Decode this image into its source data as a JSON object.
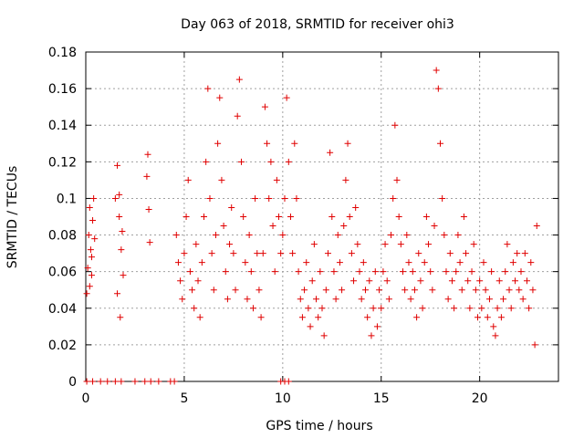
{
  "chart_data": {
    "type": "scatter",
    "title": "Day 063 of 2018, SRMTID for receiver ohi3",
    "xlabel": "GPS time / hours",
    "ylabel": "SRMTID / TECUs",
    "xlim": [
      0,
      24
    ],
    "ylim": [
      0,
      0.18
    ],
    "x_ticks": [
      "0",
      "5",
      "10",
      "15",
      "20"
    ],
    "y_ticks": [
      "0",
      "0.02",
      "0.04",
      "0.06",
      "0.08",
      "0.1",
      "0.12",
      "0.14",
      "0.16",
      "0.18"
    ],
    "grid": true,
    "marker": "plus",
    "series": [
      {
        "name": "SRMTID",
        "color": "#e00000",
        "points": [
          [
            0.05,
            0.048
          ],
          [
            0.1,
            0.062
          ],
          [
            0.15,
            0.08
          ],
          [
            0.2,
            0.095
          ],
          [
            0.25,
            0.072
          ],
          [
            0.3,
            0.058
          ],
          [
            0.35,
            0.088
          ],
          [
            0.4,
            0.1
          ],
          [
            0.45,
            0.078
          ],
          [
            0.2,
            0.052
          ],
          [
            0.3,
            0.068
          ],
          [
            1.5,
            0.1
          ],
          [
            1.6,
            0.118
          ],
          [
            1.7,
            0.09
          ],
          [
            1.8,
            0.072
          ],
          [
            1.9,
            0.058
          ],
          [
            1.6,
            0.048
          ],
          [
            1.75,
            0.035
          ],
          [
            1.85,
            0.082
          ],
          [
            1.7,
            0.102
          ],
          [
            3.1,
            0.112
          ],
          [
            3.15,
            0.124
          ],
          [
            3.2,
            0.094
          ],
          [
            3.25,
            0.076
          ],
          [
            4.6,
            0.08
          ],
          [
            4.7,
            0.065
          ],
          [
            4.8,
            0.055
          ],
          [
            4.9,
            0.045
          ],
          [
            5.0,
            0.07
          ],
          [
            5.1,
            0.09
          ],
          [
            5.2,
            0.11
          ],
          [
            5.3,
            0.06
          ],
          [
            5.4,
            0.05
          ],
          [
            5.5,
            0.04
          ],
          [
            5.6,
            0.075
          ],
          [
            5.7,
            0.055
          ],
          [
            5.8,
            0.035
          ],
          [
            5.9,
            0.065
          ],
          [
            6.0,
            0.09
          ],
          [
            6.1,
            0.12
          ],
          [
            6.2,
            0.16
          ],
          [
            6.3,
            0.1
          ],
          [
            6.4,
            0.07
          ],
          [
            6.5,
            0.05
          ],
          [
            6.6,
            0.08
          ],
          [
            6.7,
            0.13
          ],
          [
            6.8,
            0.155
          ],
          [
            6.9,
            0.11
          ],
          [
            7.0,
            0.085
          ],
          [
            7.1,
            0.06
          ],
          [
            7.2,
            0.045
          ],
          [
            7.3,
            0.075
          ],
          [
            7.4,
            0.095
          ],
          [
            7.5,
            0.07
          ],
          [
            7.6,
            0.05
          ],
          [
            7.7,
            0.145
          ],
          [
            7.8,
            0.165
          ],
          [
            7.9,
            0.12
          ],
          [
            8.0,
            0.09
          ],
          [
            8.1,
            0.065
          ],
          [
            8.2,
            0.045
          ],
          [
            8.3,
            0.08
          ],
          [
            8.4,
            0.06
          ],
          [
            8.5,
            0.04
          ],
          [
            8.6,
            0.1
          ],
          [
            8.7,
            0.07
          ],
          [
            8.8,
            0.05
          ],
          [
            8.9,
            0.035
          ],
          [
            9.0,
            0.07
          ],
          [
            9.1,
            0.15
          ],
          [
            9.2,
            0.13
          ],
          [
            9.3,
            0.1
          ],
          [
            9.4,
            0.12
          ],
          [
            9.5,
            0.085
          ],
          [
            9.6,
            0.06
          ],
          [
            9.7,
            0.11
          ],
          [
            9.8,
            0.09
          ],
          [
            9.9,
            0.07
          ],
          [
            10.0,
            0.08
          ],
          [
            10.1,
            0.1
          ],
          [
            10.2,
            0.155
          ],
          [
            10.3,
            0.12
          ],
          [
            10.4,
            0.09
          ],
          [
            10.5,
            0.07
          ],
          [
            10.6,
            0.13
          ],
          [
            10.7,
            0.1
          ],
          [
            10.8,
            0.06
          ],
          [
            10.9,
            0.045
          ],
          [
            11.0,
            0.035
          ],
          [
            11.1,
            0.05
          ],
          [
            11.2,
            0.065
          ],
          [
            11.3,
            0.04
          ],
          [
            11.4,
            0.03
          ],
          [
            11.5,
            0.055
          ],
          [
            11.6,
            0.075
          ],
          [
            11.7,
            0.045
          ],
          [
            11.8,
            0.035
          ],
          [
            11.9,
            0.06
          ],
          [
            12.0,
            0.04
          ],
          [
            12.1,
            0.025
          ],
          [
            12.2,
            0.05
          ],
          [
            12.3,
            0.07
          ],
          [
            12.4,
            0.125
          ],
          [
            12.5,
            0.09
          ],
          [
            12.6,
            0.06
          ],
          [
            12.7,
            0.045
          ],
          [
            12.8,
            0.08
          ],
          [
            12.9,
            0.065
          ],
          [
            13.0,
            0.05
          ],
          [
            13.1,
            0.085
          ],
          [
            13.2,
            0.11
          ],
          [
            13.3,
            0.13
          ],
          [
            13.4,
            0.09
          ],
          [
            13.5,
            0.07
          ],
          [
            13.6,
            0.055
          ],
          [
            13.7,
            0.095
          ],
          [
            13.8,
            0.075
          ],
          [
            13.9,
            0.06
          ],
          [
            14.0,
            0.045
          ],
          [
            14.1,
            0.065
          ],
          [
            14.2,
            0.05
          ],
          [
            14.3,
            0.035
          ],
          [
            14.4,
            0.055
          ],
          [
            14.5,
            0.025
          ],
          [
            14.6,
            0.04
          ],
          [
            14.7,
            0.06
          ],
          [
            14.8,
            0.03
          ],
          [
            14.9,
            0.05
          ],
          [
            15.0,
            0.04
          ],
          [
            15.1,
            0.06
          ],
          [
            15.2,
            0.075
          ],
          [
            15.3,
            0.055
          ],
          [
            15.4,
            0.045
          ],
          [
            15.5,
            0.08
          ],
          [
            15.6,
            0.1
          ],
          [
            15.7,
            0.14
          ],
          [
            15.8,
            0.11
          ],
          [
            15.9,
            0.09
          ],
          [
            16.0,
            0.075
          ],
          [
            16.1,
            0.06
          ],
          [
            16.2,
            0.05
          ],
          [
            16.3,
            0.08
          ],
          [
            16.4,
            0.065
          ],
          [
            16.5,
            0.045
          ],
          [
            16.6,
            0.06
          ],
          [
            16.7,
            0.05
          ],
          [
            16.8,
            0.035
          ],
          [
            16.9,
            0.07
          ],
          [
            17.0,
            0.055
          ],
          [
            17.1,
            0.04
          ],
          [
            17.2,
            0.065
          ],
          [
            17.3,
            0.09
          ],
          [
            17.4,
            0.075
          ],
          [
            17.5,
            0.06
          ],
          [
            17.6,
            0.05
          ],
          [
            17.7,
            0.085
          ],
          [
            17.8,
            0.17
          ],
          [
            17.9,
            0.16
          ],
          [
            18.0,
            0.13
          ],
          [
            18.1,
            0.1
          ],
          [
            18.2,
            0.08
          ],
          [
            18.3,
            0.06
          ],
          [
            18.4,
            0.045
          ],
          [
            18.5,
            0.07
          ],
          [
            18.6,
            0.055
          ],
          [
            18.7,
            0.04
          ],
          [
            18.8,
            0.06
          ],
          [
            18.9,
            0.08
          ],
          [
            19.0,
            0.065
          ],
          [
            19.1,
            0.05
          ],
          [
            19.2,
            0.09
          ],
          [
            19.3,
            0.07
          ],
          [
            19.4,
            0.055
          ],
          [
            19.5,
            0.04
          ],
          [
            19.6,
            0.06
          ],
          [
            19.7,
            0.075
          ],
          [
            19.8,
            0.05
          ],
          [
            19.9,
            0.035
          ],
          [
            20.0,
            0.055
          ],
          [
            20.1,
            0.04
          ],
          [
            20.2,
            0.065
          ],
          [
            20.3,
            0.05
          ],
          [
            20.4,
            0.035
          ],
          [
            20.5,
            0.045
          ],
          [
            20.6,
            0.06
          ],
          [
            20.7,
            0.03
          ],
          [
            20.8,
            0.025
          ],
          [
            20.9,
            0.04
          ],
          [
            21.0,
            0.055
          ],
          [
            21.1,
            0.035
          ],
          [
            21.2,
            0.045
          ],
          [
            21.3,
            0.06
          ],
          [
            21.4,
            0.075
          ],
          [
            21.5,
            0.05
          ],
          [
            21.6,
            0.04
          ],
          [
            21.7,
            0.065
          ],
          [
            21.8,
            0.055
          ],
          [
            21.9,
            0.07
          ],
          [
            22.0,
            0.05
          ],
          [
            22.1,
            0.06
          ],
          [
            22.2,
            0.045
          ],
          [
            22.3,
            0.07
          ],
          [
            22.4,
            0.055
          ],
          [
            22.5,
            0.04
          ],
          [
            22.6,
            0.065
          ],
          [
            22.7,
            0.05
          ],
          [
            22.8,
            0.02
          ],
          [
            22.9,
            0.085
          ],
          [
            0.05,
            0
          ],
          [
            0.35,
            0
          ],
          [
            0.75,
            0
          ],
          [
            1.1,
            0
          ],
          [
            1.5,
            0
          ],
          [
            1.8,
            0
          ],
          [
            2.5,
            0
          ],
          [
            3.0,
            0
          ],
          [
            3.3,
            0
          ],
          [
            3.7,
            0
          ],
          [
            4.3,
            0
          ],
          [
            4.5,
            0
          ],
          [
            9.9,
            0
          ],
          [
            10.1,
            0
          ],
          [
            10.3,
            0
          ]
        ]
      }
    ]
  }
}
